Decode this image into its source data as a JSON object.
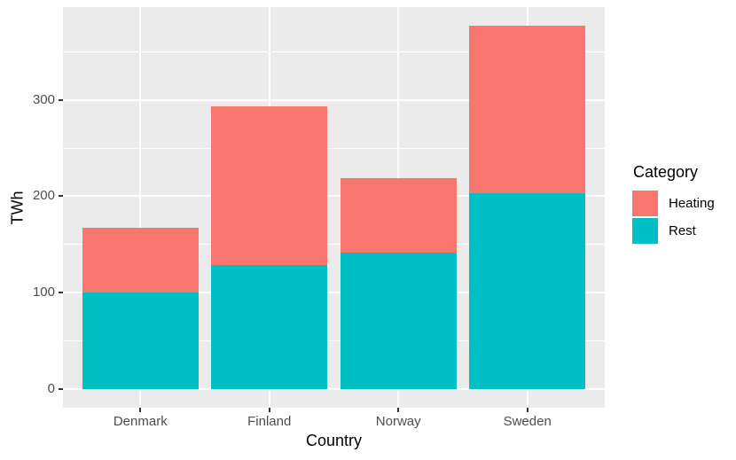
{
  "chart_data": {
    "type": "bar",
    "stacked": true,
    "xlabel": "Country",
    "ylabel": "TWh",
    "categories": [
      "Denmark",
      "Finland",
      "Norway",
      "Sweden"
    ],
    "series": [
      {
        "name": "Heating",
        "color": "#F8766D",
        "values": [
          67,
          164,
          77,
          174
        ]
      },
      {
        "name": "Rest",
        "color": "#00BFC4",
        "values": [
          100,
          129,
          142,
          203
        ]
      }
    ],
    "stack_order_bottom_to_top": [
      "Rest",
      "Heating"
    ],
    "totals": [
      167,
      293,
      219,
      377
    ],
    "y_ticks": [
      0,
      100,
      200,
      300
    ],
    "y_minor_ticks": [
      50,
      150,
      250,
      350
    ],
    "ylim": [
      -19,
      396
    ],
    "grid": "on",
    "panel_bg": "#EBEBEB",
    "grid_color": "#FFFFFF",
    "tick_label_color": "#4D4D4D",
    "legend": {
      "title": "Category",
      "position": "right",
      "entries": [
        {
          "label": "Heating",
          "color": "#F8766D"
        },
        {
          "label": "Rest",
          "color": "#00BFC4"
        }
      ]
    }
  }
}
